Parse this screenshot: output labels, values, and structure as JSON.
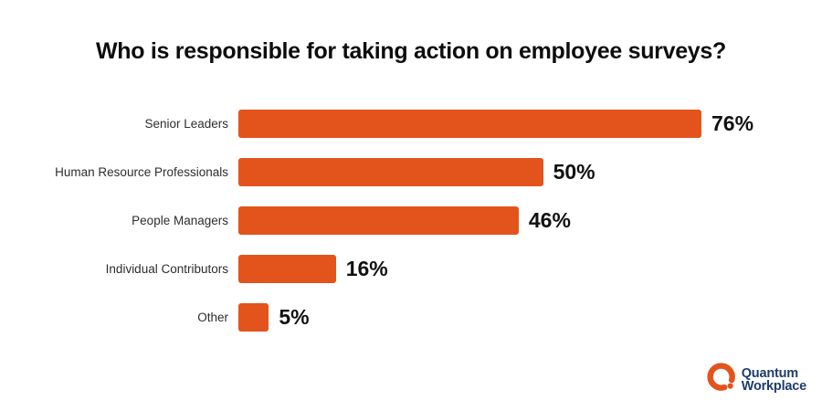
{
  "page": {
    "background": "#ffffff",
    "title": "Who is responsible for taking action on employee surveys?"
  },
  "chart_data": {
    "type": "bar",
    "orientation": "horizontal",
    "title": "Who is responsible for taking action on employee surveys?",
    "categories": [
      "Senior Leaders",
      "Human Resource Professionals",
      "People Managers",
      "Individual Contributors",
      "Other"
    ],
    "values": [
      76,
      50,
      46,
      16,
      5
    ],
    "value_labels": [
      "76%",
      "50%",
      "46%",
      "16%",
      "5%"
    ],
    "xlabel": "",
    "ylabel": "",
    "xlim": [
      0,
      76
    ],
    "grid": false,
    "legend": null,
    "bar_color": "#e2541c",
    "value_label_color": "#111111",
    "category_label_color": "#2d2d2d"
  },
  "logo": {
    "line1": "Quantum",
    "line2": "Workplace",
    "mark_color": "#e2541c",
    "text_color": "#1e3d6b"
  }
}
